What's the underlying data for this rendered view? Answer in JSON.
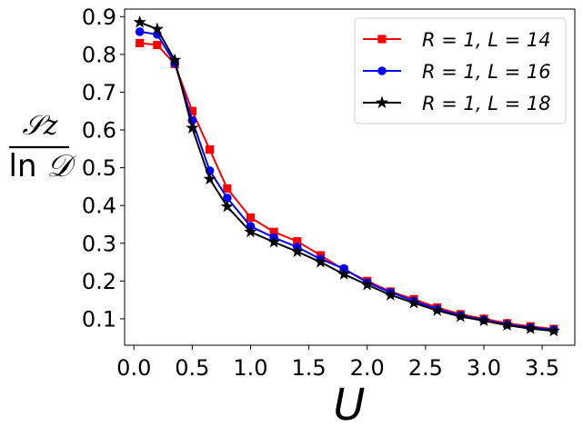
{
  "chart_data": {
    "type": "line",
    "xlabel": "U",
    "ylabel": {
      "numerator": "𝒮z",
      "denominator_ln": "ln",
      "denominator_sym": "𝒟"
    },
    "xlim": [
      -0.08,
      3.78
    ],
    "ylim": [
      0.03,
      0.92
    ],
    "xticks": [
      0.0,
      0.5,
      1.0,
      1.5,
      2.0,
      2.5,
      3.0,
      3.5
    ],
    "xtick_labels": [
      "0.0",
      "0.5",
      "1.0",
      "1.5",
      "2.0",
      "2.5",
      "3.0",
      "3.5"
    ],
    "yticks": [
      0.1,
      0.2,
      0.3,
      0.4,
      0.5,
      0.6,
      0.7,
      0.8,
      0.9
    ],
    "ytick_labels": [
      "0.1",
      "0.2",
      "0.3",
      "0.4",
      "0.5",
      "0.6",
      "0.7",
      "0.8",
      "0.9"
    ],
    "legend_position": "top-right",
    "series": [
      {
        "name": "R = 1, L = 14",
        "color": "#ff0000",
        "marker": "square",
        "x": [
          0.05,
          0.2,
          0.35,
          0.5,
          0.65,
          0.8,
          1.0,
          1.2,
          1.4,
          1.6,
          1.8,
          2.0,
          2.2,
          2.4,
          2.6,
          2.8,
          3.0,
          3.2,
          3.4,
          3.6
        ],
        "y": [
          0.83,
          0.825,
          0.775,
          0.65,
          0.548,
          0.445,
          0.368,
          0.33,
          0.305,
          0.268,
          0.23,
          0.2,
          0.172,
          0.152,
          0.13,
          0.112,
          0.1,
          0.088,
          0.08,
          0.073
        ]
      },
      {
        "name": "R = 1, L = 16",
        "color": "#0000ff",
        "marker": "circle",
        "x": [
          0.05,
          0.2,
          0.35,
          0.5,
          0.65,
          0.8,
          1.0,
          1.2,
          1.4,
          1.6,
          1.8,
          2.0,
          2.2,
          2.4,
          2.6,
          2.8,
          3.0,
          3.2,
          3.4,
          3.6
        ],
        "y": [
          0.86,
          0.853,
          0.777,
          0.625,
          0.492,
          0.42,
          0.345,
          0.315,
          0.29,
          0.258,
          0.233,
          0.196,
          0.17,
          0.147,
          0.126,
          0.109,
          0.097,
          0.085,
          0.077,
          0.071
        ]
      },
      {
        "name": "R = 1, L = 18",
        "color": "#000000",
        "marker": "star",
        "x": [
          0.05,
          0.2,
          0.35,
          0.5,
          0.65,
          0.8,
          1.0,
          1.2,
          1.4,
          1.6,
          1.8,
          2.0,
          2.2,
          2.4,
          2.6,
          2.8,
          3.0,
          3.2,
          3.4,
          3.6
        ],
        "y": [
          0.885,
          0.867,
          0.785,
          0.605,
          0.47,
          0.397,
          0.33,
          0.303,
          0.278,
          0.25,
          0.218,
          0.19,
          0.163,
          0.142,
          0.122,
          0.106,
          0.095,
          0.083,
          0.074,
          0.068
        ]
      }
    ]
  }
}
